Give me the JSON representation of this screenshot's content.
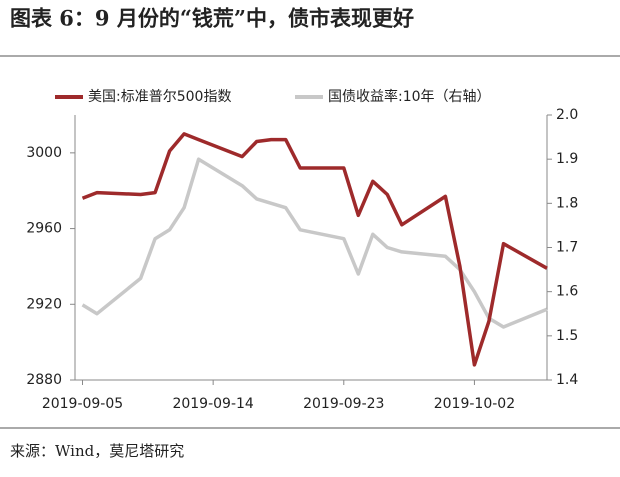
{
  "chart_data": {
    "type": "line",
    "title": "图表 6：9 月份的“钱荒”中，债市表现更好",
    "source": "来源：Wind，莫尼塔研究",
    "x": [
      "2019-09-05",
      "2019-09-06",
      "2019-09-09",
      "2019-09-10",
      "2019-09-11",
      "2019-09-12",
      "2019-09-13",
      "2019-09-16",
      "2019-09-17",
      "2019-09-18",
      "2019-09-19",
      "2019-09-20",
      "2019-09-23",
      "2019-09-24",
      "2019-09-25",
      "2019-09-26",
      "2019-09-27",
      "2019-09-30",
      "2019-10-01",
      "2019-10-02",
      "2019-10-03",
      "2019-10-04",
      "2019-10-07"
    ],
    "series": [
      {
        "name": "美国:标准普尔500指数",
        "color": "#9e2a2b",
        "values": [
          2976,
          2979,
          2978,
          2979,
          3001,
          3010,
          3007,
          2998,
          3006,
          3007,
          3007,
          2992,
          2992,
          2967,
          2985,
          2978,
          2962,
          2977,
          2940,
          2888,
          2911,
          2952,
          2939
        ]
      },
      {
        "name": "国债收益率:10年（右轴）",
        "color": "#c8c8c8",
        "axis": "y2",
        "values": [
          1.57,
          1.55,
          1.63,
          1.72,
          1.74,
          1.79,
          1.9,
          1.84,
          1.81,
          1.8,
          1.79,
          1.74,
          1.72,
          1.64,
          1.73,
          1.7,
          1.69,
          1.68,
          1.65,
          1.6,
          1.54,
          1.52,
          1.56
        ]
      }
    ],
    "xlim": [
      "2019-09-04",
      "2019-10-07"
    ],
    "xticks": [
      "2019-09-05",
      "2019-09-14",
      "2019-09-23",
      "2019-10-02"
    ],
    "ylim": [
      2880,
      3020
    ],
    "yticks": [
      2880,
      2920,
      2960,
      3000
    ],
    "y2lim": [
      1.4,
      2.0
    ],
    "y2ticks": [
      1.4,
      1.5,
      1.6,
      1.7,
      1.8,
      1.9,
      {
        "value": 2.0,
        "label": "2.0"
      }
    ]
  }
}
